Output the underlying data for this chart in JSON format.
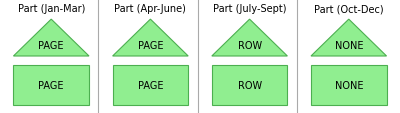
{
  "panels": [
    {
      "title": "Part (Jan-Mar)",
      "triangle_label": "PAGE",
      "rect_label": "PAGE"
    },
    {
      "title": "Part (Apr-June)",
      "triangle_label": "PAGE",
      "rect_label": "PAGE"
    },
    {
      "title": "Part (July-Sept)",
      "triangle_label": "ROW",
      "rect_label": "ROW"
    },
    {
      "title": "Part (Oct-Dec)",
      "triangle_label": "NONE",
      "rect_label": "NONE"
    }
  ],
  "green_fill": "#90EE90",
  "green_edge": "#4CAF50",
  "divider_color": "#aaaaaa",
  "title_fontsize": 7.0,
  "label_fontsize": 7.0,
  "bg_color": "#ffffff"
}
